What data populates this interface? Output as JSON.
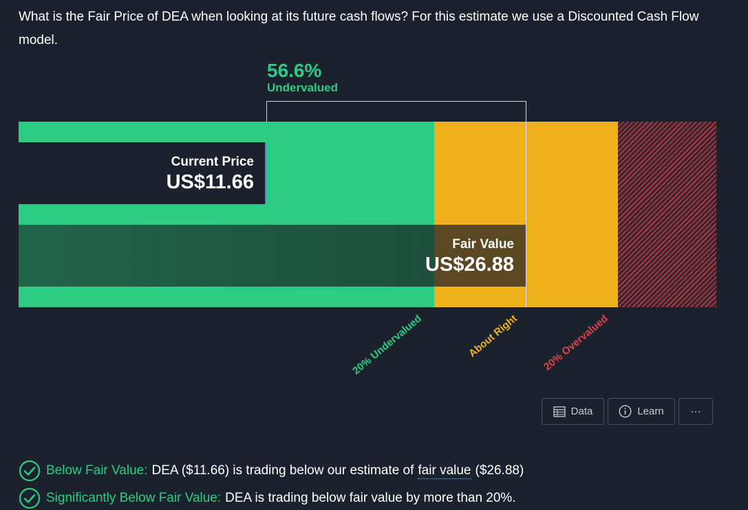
{
  "question": "What is the Fair Price of DEA when looking at its future cash flows? For this estimate we use a Discounted Cash Flow model.",
  "valuation": {
    "percent": "56.6%",
    "status": "Undervalued"
  },
  "current_price": {
    "label": "Current Price",
    "value": "US$11.66"
  },
  "fair_value": {
    "label": "Fair Value",
    "value": "US$26.88"
  },
  "zones": {
    "under": "20% Undervalued",
    "right": "About Right",
    "over": "20% Overvalued"
  },
  "colors": {
    "green": "#2ecc82",
    "yellow": "#eeb11b",
    "red": "#e0434a",
    "background": "#1b222d"
  },
  "buttons": {
    "data": "Data",
    "learn": "Learn",
    "more": "···"
  },
  "checks": [
    {
      "label": "Below Fair Value:",
      "text_before": "DEA ($11.66) is trading below our estimate of",
      "link": "fair value",
      "text_after": "($26.88)",
      "icon": "check-circle-icon"
    },
    {
      "label": "Significantly Below Fair Value:",
      "text": "DEA is trading below fair value by more than 20%.",
      "icon": "check-circle-icon"
    }
  ]
}
